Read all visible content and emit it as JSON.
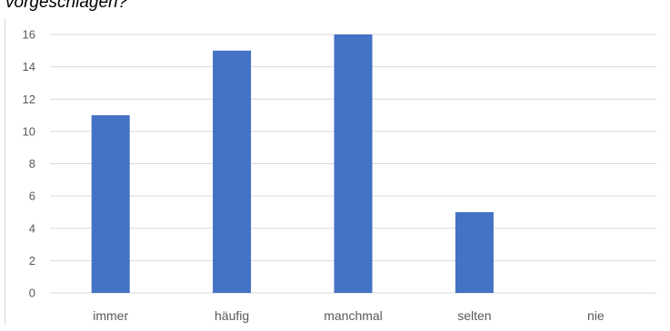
{
  "caption": "vorgeschlagen?",
  "chart_data": {
    "type": "bar",
    "categories": [
      "immer",
      "häufig",
      "manchmal",
      "selten",
      "nie"
    ],
    "values": [
      11,
      15,
      16,
      5,
      0
    ],
    "ylim": [
      0,
      16
    ],
    "yticks": [
      0,
      2,
      4,
      6,
      8,
      10,
      12,
      14,
      16
    ],
    "grid": true,
    "bar_color": "#4472C4",
    "grid_color": "#d9d9d9",
    "tick_color": "#595959"
  }
}
